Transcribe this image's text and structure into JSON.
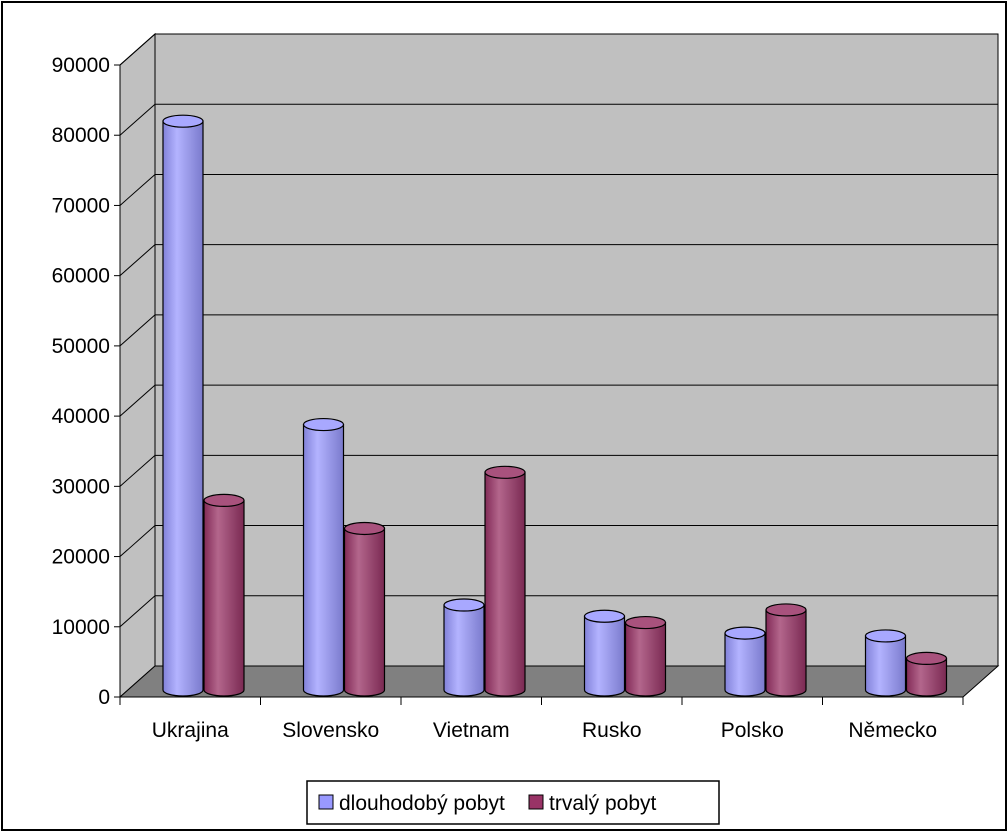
{
  "chart_data": {
    "type": "bar",
    "title": "",
    "xlabel": "",
    "ylabel": "",
    "ylim": [
      0,
      90000
    ],
    "yticks": [
      0,
      10000,
      20000,
      30000,
      40000,
      50000,
      60000,
      70000,
      80000,
      90000
    ],
    "grid": true,
    "legend_position": "bottom",
    "categories": [
      "Ukrajina",
      "Slovensko",
      "Vietnam",
      "Rusko",
      "Polsko",
      "Německo"
    ],
    "series": [
      {
        "name": "dlouhodobý pobyt",
        "color": "#9999FF",
        "values": [
          81000,
          37800,
          12100,
          10500,
          8100,
          7700
        ]
      },
      {
        "name": "trvalý pobyt",
        "color": "#993366",
        "values": [
          27000,
          23000,
          31000,
          9600,
          11400,
          4500
        ]
      }
    ],
    "colors": {
      "wall": "#C0C0C0",
      "floor": "#808080",
      "gridline": "#000000",
      "border": "#000000"
    }
  }
}
